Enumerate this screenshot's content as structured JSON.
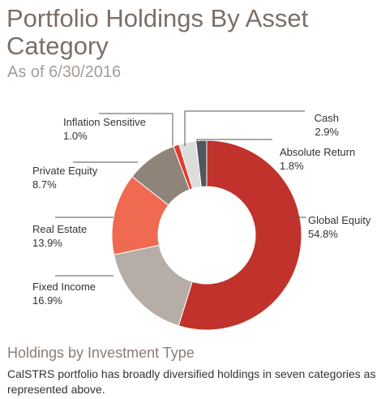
{
  "chart_data": {
    "type": "pie",
    "title": "Portfolio Holdings By Asset Category",
    "subtitle": "As of 6/30/2016",
    "categories": [
      "Global Equity",
      "Fixed Income",
      "Real Estate",
      "Private Equity",
      "Inflation Sensitive",
      "Cash",
      "Absolute Return"
    ],
    "values": [
      54.8,
      16.9,
      13.9,
      8.7,
      1.0,
      2.9,
      1.8
    ],
    "value_labels": [
      "54.8%",
      "16.9%",
      "13.9%",
      "8.7%",
      "1.0%",
      "2.9%",
      "1.8%"
    ],
    "colors": [
      "#c0322b",
      "#b6ada7",
      "#ef6a50",
      "#8f8479",
      "#e23b2f",
      "#dddddd",
      "#51565c"
    ]
  },
  "footer": {
    "heading": "Holdings by Investment Type",
    "text": "CalSTRS portfolio has broadly diversified holdings in seven categories as represented above."
  }
}
